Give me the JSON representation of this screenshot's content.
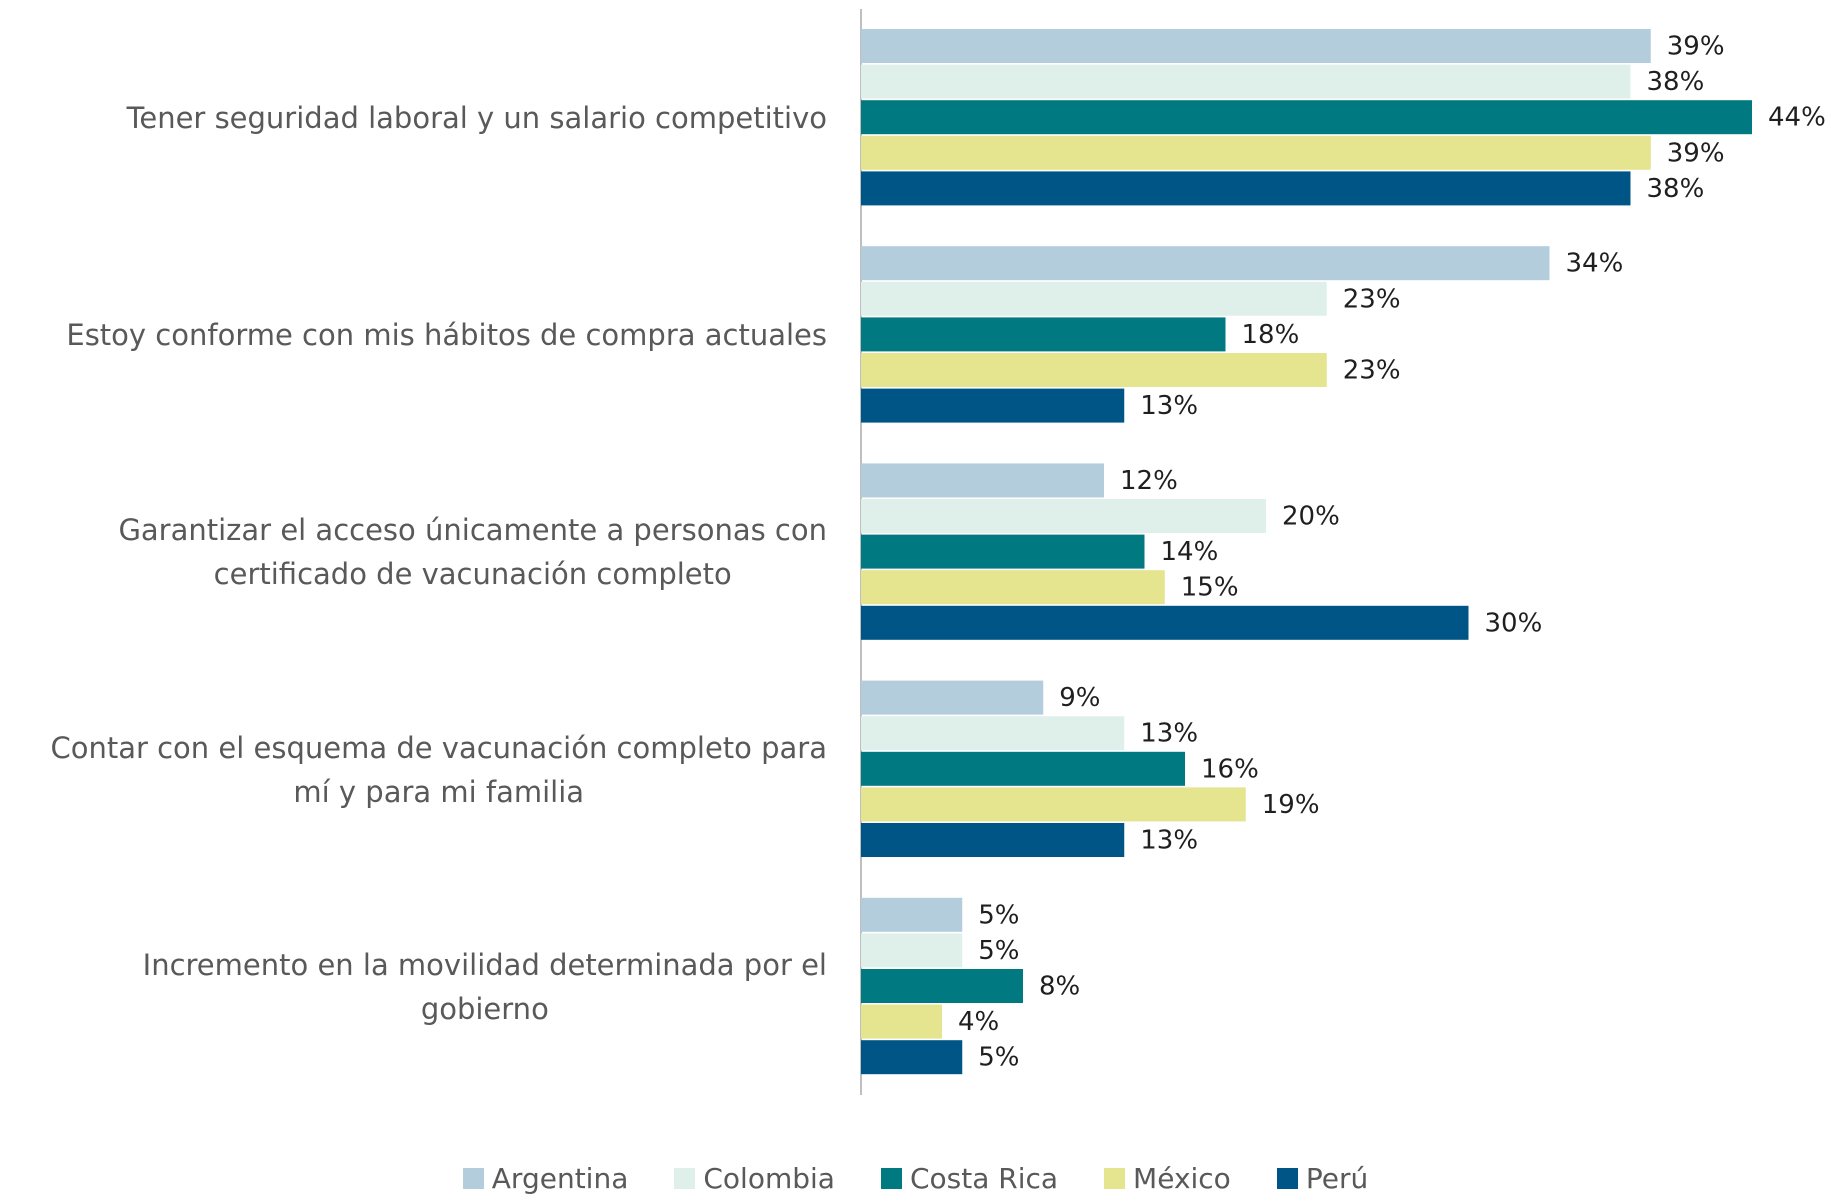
{
  "chart_data": {
    "type": "bar",
    "orientation": "horizontal",
    "categories": [
      "Tener seguridad laboral y un salario competitivo",
      "Estoy conforme con mis hábitos de compra actuales",
      "Garantizar el acceso únicamente a personas con\ncertificado de vacunación completo",
      "Contar con el esquema de vacunación completo para\nmí y para mi familia",
      "Incremento en la movilidad determinada por el\ngobierno"
    ],
    "series": [
      {
        "name": "Argentina",
        "color": "#b4cddc",
        "values": [
          39,
          34,
          12,
          9,
          5
        ],
        "value_labels": [
          "39%",
          "34%",
          "12%",
          "9%",
          "5%"
        ]
      },
      {
        "name": "Colombia",
        "color": "#dff0eb",
        "values": [
          38,
          23,
          20,
          13,
          5
        ],
        "value_labels": [
          "38%",
          "23%",
          "20%",
          "13%",
          "5%"
        ]
      },
      {
        "name": "Costa Rica",
        "color": "#007a80",
        "values": [
          44,
          18,
          14,
          16,
          8
        ],
        "value_labels": [
          "44%",
          "18%",
          "14%",
          "16%",
          "8%"
        ]
      },
      {
        "name": "México",
        "color": "#e5e48f",
        "values": [
          39,
          23,
          15,
          19,
          4
        ],
        "value_labels": [
          "39%",
          "23%",
          "15%",
          "19%",
          "4%"
        ]
      },
      {
        "name": "Perú",
        "color": "#005587",
        "values": [
          38,
          13,
          30,
          13,
          5
        ],
        "value_labels": [
          "38%",
          "13%",
          "30%",
          "13%",
          "5%"
        ]
      }
    ],
    "legend": "bottom"
  }
}
